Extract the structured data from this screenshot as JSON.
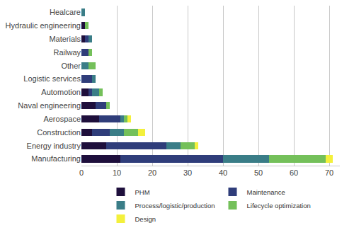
{
  "chart_data": {
    "type": "bar",
    "orientation": "horizontal",
    "stacked": true,
    "grid": true,
    "legend": "bottom",
    "categories": [
      "Manufacturing",
      "Energy industry",
      "Construction",
      "Aerospace",
      "Naval engineering",
      "Automotion",
      "Logistic services",
      "Other",
      "Railway",
      "Materials",
      "Hydraulic engineering",
      "Healcare"
    ],
    "series": [
      {
        "name": "PHM",
        "color": "#1e0f3c",
        "values": [
          11,
          7,
          3,
          5,
          4,
          2,
          0,
          0,
          0,
          1,
          1,
          0
        ]
      },
      {
        "name": "Maintenance",
        "color": "#2f3d7a",
        "values": [
          29,
          17,
          5,
          6,
          3,
          1,
          3,
          0,
          2,
          1,
          0,
          0
        ]
      },
      {
        "name": "Process/logistic/production",
        "color": "#3a7d87",
        "values": [
          13,
          4,
          4,
          1,
          0,
          2,
          1,
          2,
          0,
          1,
          0,
          1
        ]
      },
      {
        "name": "Lifecycle optimization",
        "color": "#74c05a",
        "values": [
          16,
          4,
          4,
          1,
          1,
          1,
          0,
          2,
          1,
          0,
          1,
          0
        ]
      },
      {
        "name": "Design",
        "color": "#f3f03c",
        "values": [
          2,
          1,
          2,
          1,
          0,
          0,
          0,
          0,
          0,
          0,
          0,
          0
        ]
      }
    ],
    "xlim": [
      0,
      73
    ],
    "xticks": [
      0,
      10,
      20,
      30,
      40,
      50,
      60,
      70
    ]
  }
}
